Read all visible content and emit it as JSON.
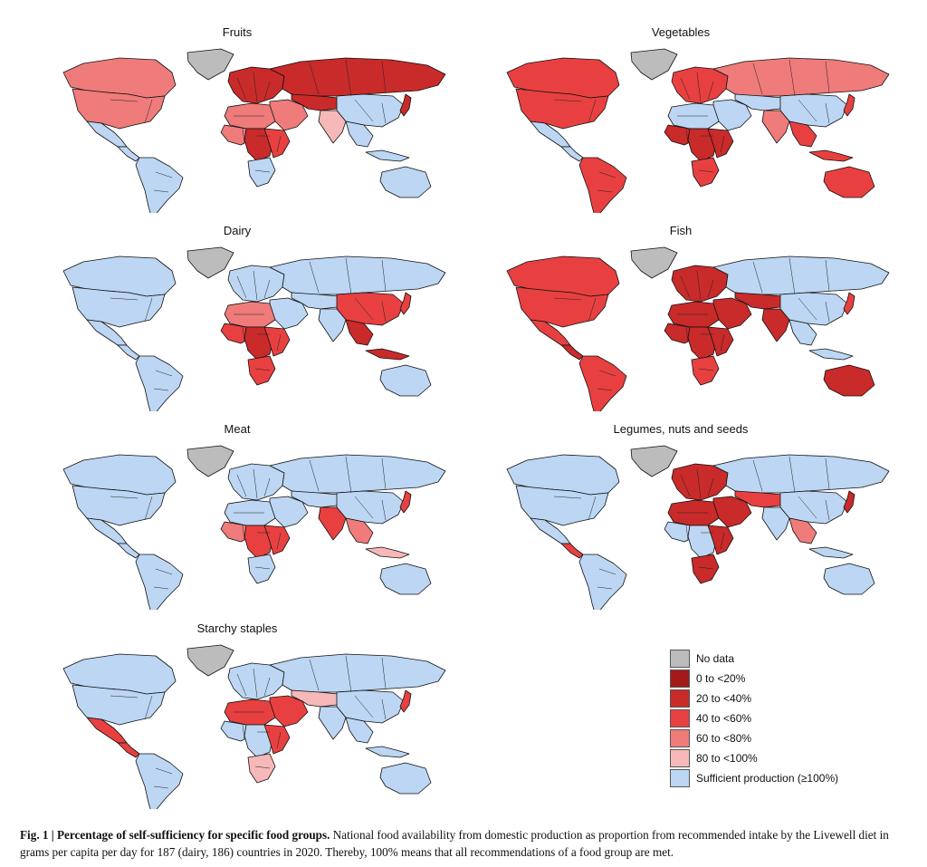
{
  "panels": [
    {
      "title": "Fruits",
      "scheme": {
        "na": "#ffffff",
        "na_asia": "#ffffff",
        "greenland": "nodata",
        "canada": "c60",
        "usa": "c60",
        "mexico": "ok",
        "central_america": "ok",
        "south_america": "ok",
        "europe": "c20",
        "russia": "c20",
        "middle_east": "c60",
        "central_asia": "c20",
        "china": "ok",
        "india": "c80",
        "se_asia": "ok",
        "north_africa": "c60",
        "west_africa": "c60",
        "central_africa": "c20",
        "east_africa": "c40",
        "south_africa": "ok",
        "australia": "ok",
        "japan": "c20",
        "indonesia": "ok"
      }
    },
    {
      "title": "Vegetables",
      "scheme": {
        "greenland": "nodata",
        "canada": "c40",
        "usa": "c40",
        "mexico": "ok",
        "central_america": "ok",
        "south_america": "c40",
        "europe": "c40",
        "russia": "c60",
        "middle_east": "ok",
        "central_asia": "ok",
        "china": "ok",
        "india": "c60",
        "se_asia": "c40",
        "north_africa": "ok",
        "west_africa": "c20",
        "central_africa": "c20",
        "east_africa": "c20",
        "south_africa": "c40",
        "australia": "c40",
        "japan": "c40",
        "indonesia": "c40"
      }
    },
    {
      "title": "Dairy",
      "scheme": {
        "greenland": "nodata",
        "canada": "ok",
        "usa": "ok",
        "mexico": "ok",
        "central_america": "ok",
        "south_america": "ok",
        "europe": "ok",
        "russia": "ok",
        "middle_east": "ok",
        "central_asia": "ok",
        "china": "c40",
        "india": "ok",
        "se_asia": "c20",
        "north_africa": "c60",
        "west_africa": "c40",
        "central_africa": "c20",
        "east_africa": "c40",
        "south_africa": "c40",
        "australia": "ok",
        "japan": "c40",
        "indonesia": "c20"
      }
    },
    {
      "title": "Fish",
      "scheme": {
        "greenland": "nodata",
        "canada": "c40",
        "usa": "c40",
        "mexico": "c40",
        "central_america": "c20",
        "south_america": "c40",
        "europe": "c20",
        "russia": "ok",
        "middle_east": "c20",
        "central_asia": "c20",
        "china": "ok",
        "india": "c20",
        "se_asia": "ok",
        "north_africa": "c20",
        "west_africa": "c20",
        "central_africa": "c20",
        "east_africa": "c20",
        "south_africa": "c40",
        "australia": "c20",
        "japan": "c40",
        "indonesia": "ok"
      }
    },
    {
      "title": "Meat",
      "scheme": {
        "greenland": "nodata",
        "canada": "ok",
        "usa": "ok",
        "mexico": "ok",
        "central_america": "ok",
        "south_america": "ok",
        "europe": "ok",
        "russia": "ok",
        "middle_east": "ok",
        "central_asia": "ok",
        "china": "ok",
        "india": "c40",
        "se_asia": "c60",
        "north_africa": "ok",
        "west_africa": "c60",
        "central_africa": "c40",
        "east_africa": "c40",
        "south_africa": "ok",
        "australia": "ok",
        "japan": "c40",
        "indonesia": "c80"
      }
    },
    {
      "title": "Legumes, nuts and seeds",
      "scheme": {
        "greenland": "nodata",
        "canada": "ok",
        "usa": "ok",
        "mexico": "ok",
        "central_america": "c40",
        "south_america": "ok",
        "europe": "c20",
        "russia": "ok",
        "middle_east": "c20",
        "central_asia": "c40",
        "china": "ok",
        "india": "ok",
        "se_asia": "c60",
        "north_africa": "c20",
        "west_africa": "ok",
        "central_africa": "ok",
        "east_africa": "c20",
        "south_africa": "c20",
        "australia": "ok",
        "japan": "c20",
        "indonesia": "ok"
      }
    },
    {
      "title": "Starchy staples",
      "scheme": {
        "greenland": "nodata",
        "canada": "ok",
        "usa": "ok",
        "mexico": "c40",
        "central_america": "c40",
        "south_america": "ok",
        "europe": "ok",
        "russia": "ok",
        "middle_east": "c40",
        "central_asia": "c80",
        "china": "ok",
        "india": "ok",
        "se_asia": "ok",
        "north_africa": "c40",
        "west_africa": "ok",
        "central_africa": "ok",
        "east_africa": "c40",
        "south_africa": "c80",
        "australia": "ok",
        "japan": "c40",
        "indonesia": "ok"
      }
    }
  ],
  "legend": [
    {
      "key": "nodata",
      "label": "No data",
      "color": "#bcbcbc"
    },
    {
      "key": "c0",
      "label": "0 to <20%",
      "color": "#a31a1a"
    },
    {
      "key": "c20",
      "label": "20 to <40%",
      "color": "#c92a2a"
    },
    {
      "key": "c40",
      "label": "40 to <60%",
      "color": "#e84040"
    },
    {
      "key": "c60",
      "label": "60 to <80%",
      "color": "#ef7b7b"
    },
    {
      "key": "c80",
      "label": "80 to <100%",
      "color": "#f6b8b8"
    },
    {
      "key": "ok",
      "label": "Sufficient production (≥100%)",
      "color": "#bcd6f3"
    }
  ],
  "caption": {
    "label": "Fig. 1 | Percentage of self-sufficiency for specific food groups.",
    "text": " National food availability from domestic production as proportion from recommended intake by the Livewell diet in grams per capita per day for 187 (dairy, 186) countries in 2020. Thereby, 100% means that all recommendations of a food group are met."
  }
}
